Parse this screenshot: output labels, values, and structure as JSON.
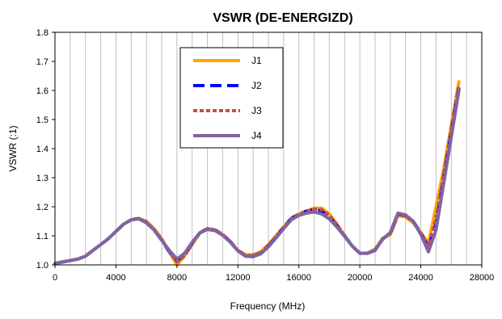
{
  "chart_data": {
    "type": "line",
    "title": "VSWR (DE-ENERGIZD)",
    "xlabel": "Frequency (MHz)",
    "ylabel": "VSWR (:1)",
    "xlim": [
      0,
      28000
    ],
    "ylim": [
      1.0,
      1.8
    ],
    "xticks": [
      0,
      4000,
      8000,
      12000,
      16000,
      20000,
      24000,
      28000
    ],
    "yticks": [
      1.0,
      1.1,
      1.2,
      1.3,
      1.4,
      1.5,
      1.6,
      1.7,
      1.8
    ],
    "xtick_labels": [
      "0",
      "4000",
      "8000",
      "12000",
      "16000",
      "20000",
      "24000",
      "28000"
    ],
    "ytick_labels": [
      "1.0",
      "1.1",
      "1.2",
      "1.3",
      "1.4",
      "1.5",
      "1.6",
      "1.7",
      "1.8"
    ],
    "grid": "vertical",
    "legend_position": "top-center",
    "series": [
      {
        "name": "J1",
        "color": "#FFA500",
        "dash": "solid",
        "x": [
          0,
          500,
          1000,
          1500,
          2000,
          2500,
          3000,
          3500,
          4000,
          4500,
          5000,
          5500,
          6000,
          6500,
          7000,
          7500,
          8000,
          8500,
          9000,
          9500,
          10000,
          10500,
          11000,
          11500,
          12000,
          12500,
          13000,
          13500,
          14000,
          14500,
          15000,
          15500,
          16000,
          16500,
          17000,
          17500,
          18000,
          18500,
          19000,
          19500,
          20000,
          20500,
          21000,
          21500,
          22000,
          22500,
          23000,
          23500,
          24000,
          24500,
          25000,
          25500,
          26000,
          26500
        ],
        "y": [
          1.005,
          1.01,
          1.015,
          1.02,
          1.03,
          1.05,
          1.07,
          1.09,
          1.115,
          1.14,
          1.155,
          1.16,
          1.15,
          1.125,
          1.09,
          1.045,
          1.0,
          1.03,
          1.07,
          1.11,
          1.125,
          1.12,
          1.105,
          1.08,
          1.05,
          1.035,
          1.035,
          1.045,
          1.07,
          1.1,
          1.13,
          1.16,
          1.175,
          1.185,
          1.195,
          1.195,
          1.175,
          1.14,
          1.1,
          1.065,
          1.04,
          1.04,
          1.055,
          1.09,
          1.105,
          1.17,
          1.165,
          1.145,
          1.11,
          1.075,
          1.2,
          1.33,
          1.48,
          1.63
        ]
      },
      {
        "name": "J2",
        "color": "#0000FF",
        "dash": "long-dash",
        "x": [
          0,
          500,
          1000,
          1500,
          2000,
          2500,
          3000,
          3500,
          4000,
          4500,
          5000,
          5500,
          6000,
          6500,
          7000,
          7500,
          8000,
          8500,
          9000,
          9500,
          10000,
          10500,
          11000,
          11500,
          12000,
          12500,
          13000,
          13500,
          14000,
          14500,
          15000,
          15500,
          16000,
          16500,
          17000,
          17500,
          18000,
          18500,
          19000,
          19500,
          20000,
          20500,
          21000,
          21500,
          22000,
          22500,
          23000,
          23500,
          24000,
          24500,
          25000,
          25500,
          26000,
          26500
        ],
        "y": [
          1.005,
          1.01,
          1.015,
          1.02,
          1.03,
          1.05,
          1.07,
          1.09,
          1.115,
          1.14,
          1.155,
          1.16,
          1.145,
          1.12,
          1.085,
          1.045,
          1.015,
          1.035,
          1.075,
          1.11,
          1.125,
          1.12,
          1.105,
          1.08,
          1.05,
          1.03,
          1.03,
          1.04,
          1.065,
          1.095,
          1.13,
          1.16,
          1.175,
          1.185,
          1.19,
          1.185,
          1.165,
          1.135,
          1.1,
          1.065,
          1.04,
          1.04,
          1.05,
          1.09,
          1.11,
          1.175,
          1.17,
          1.15,
          1.11,
          1.06,
          1.14,
          1.3,
          1.46,
          1.61
        ]
      },
      {
        "name": "J3",
        "color": "#C0504D",
        "dash": "short-dash",
        "x": [
          0,
          500,
          1000,
          1500,
          2000,
          2500,
          3000,
          3500,
          4000,
          4500,
          5000,
          5500,
          6000,
          6500,
          7000,
          7500,
          8000,
          8500,
          9000,
          9500,
          10000,
          10500,
          11000,
          11500,
          12000,
          12500,
          13000,
          13500,
          14000,
          14500,
          15000,
          15500,
          16000,
          16500,
          17000,
          17500,
          18000,
          18500,
          19000,
          19500,
          20000,
          20500,
          21000,
          21500,
          22000,
          22500,
          23000,
          23500,
          24000,
          24500,
          25000,
          25500,
          26000,
          26500
        ],
        "y": [
          1.005,
          1.01,
          1.015,
          1.02,
          1.03,
          1.05,
          1.07,
          1.09,
          1.115,
          1.14,
          1.155,
          1.16,
          1.148,
          1.122,
          1.088,
          1.045,
          1.01,
          1.032,
          1.072,
          1.11,
          1.125,
          1.12,
          1.105,
          1.08,
          1.05,
          1.032,
          1.032,
          1.042,
          1.068,
          1.098,
          1.13,
          1.16,
          1.175,
          1.185,
          1.192,
          1.19,
          1.17,
          1.138,
          1.1,
          1.065,
          1.04,
          1.04,
          1.052,
          1.09,
          1.108,
          1.172,
          1.168,
          1.148,
          1.11,
          1.065,
          1.16,
          1.31,
          1.47,
          1.62
        ]
      },
      {
        "name": "J4",
        "color": "#8064A2",
        "dash": "solid",
        "x": [
          0,
          500,
          1000,
          1500,
          2000,
          2500,
          3000,
          3500,
          4000,
          4500,
          5000,
          5500,
          6000,
          6500,
          7000,
          7500,
          8000,
          8500,
          9000,
          9500,
          10000,
          10500,
          11000,
          11500,
          12000,
          12500,
          13000,
          13500,
          14000,
          14500,
          15000,
          15500,
          16000,
          16500,
          17000,
          17500,
          18000,
          18500,
          19000,
          19500,
          20000,
          20500,
          21000,
          21500,
          22000,
          22500,
          23000,
          23500,
          24000,
          24500,
          25000,
          25500,
          26000,
          26500
        ],
        "y": [
          1.005,
          1.01,
          1.015,
          1.02,
          1.03,
          1.05,
          1.07,
          1.09,
          1.115,
          1.14,
          1.155,
          1.158,
          1.145,
          1.12,
          1.085,
          1.05,
          1.02,
          1.04,
          1.078,
          1.11,
          1.122,
          1.118,
          1.102,
          1.078,
          1.048,
          1.03,
          1.028,
          1.038,
          1.062,
          1.092,
          1.125,
          1.155,
          1.17,
          1.178,
          1.182,
          1.175,
          1.158,
          1.13,
          1.098,
          1.065,
          1.04,
          1.04,
          1.05,
          1.088,
          1.112,
          1.178,
          1.172,
          1.15,
          1.105,
          1.045,
          1.12,
          1.28,
          1.44,
          1.6
        ]
      }
    ]
  }
}
